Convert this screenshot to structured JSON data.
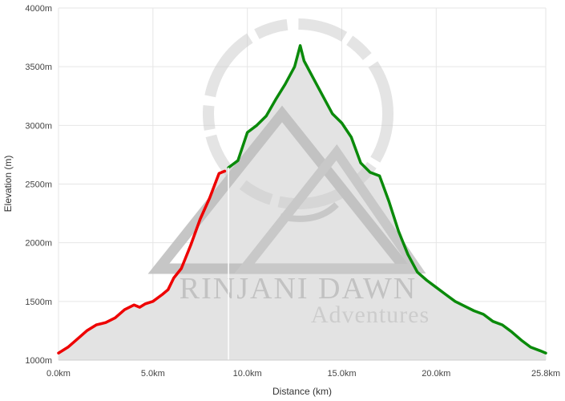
{
  "chart_data": {
    "type": "area",
    "xlabel": "Distance (km)",
    "ylabel": "Elevation (m)",
    "xlim": [
      0,
      25.8
    ],
    "ylim": [
      1000,
      4000
    ],
    "x_ticks": [
      0,
      5,
      10,
      15,
      20,
      25.8
    ],
    "x_tick_labels": [
      "0.0km",
      "5.0km",
      "10.0km",
      "15.0km",
      "20.0km",
      "25.8km"
    ],
    "y_ticks": [
      1000,
      1500,
      2000,
      2500,
      3000,
      3500,
      4000
    ],
    "y_tick_labels": [
      "1000m",
      "1500m",
      "2000m",
      "2500m",
      "3000m",
      "3500m",
      "4000m"
    ],
    "grid": true,
    "area_color": "#e3e3e3",
    "marker_x": 9.0,
    "series": [
      {
        "color": "#ee0000",
        "points": [
          [
            0,
            1060
          ],
          [
            0.5,
            1110
          ],
          [
            1.0,
            1180
          ],
          [
            1.5,
            1250
          ],
          [
            2.0,
            1300
          ],
          [
            2.5,
            1320
          ],
          [
            3.0,
            1360
          ],
          [
            3.5,
            1430
          ],
          [
            4.0,
            1470
          ],
          [
            4.3,
            1450
          ],
          [
            4.6,
            1480
          ],
          [
            5.0,
            1500
          ],
          [
            5.5,
            1560
          ],
          [
            5.8,
            1600
          ],
          [
            6.1,
            1700
          ],
          [
            6.5,
            1780
          ],
          [
            7.0,
            1980
          ],
          [
            7.5,
            2200
          ],
          [
            8.0,
            2380
          ],
          [
            8.4,
            2550
          ],
          [
            8.5,
            2590
          ],
          [
            8.8,
            2610
          ]
        ]
      },
      {
        "color": "#0a8a0a",
        "points": [
          [
            9.0,
            2640
          ],
          [
            9.5,
            2700
          ],
          [
            10.0,
            2940
          ],
          [
            10.5,
            3000
          ],
          [
            11.0,
            3080
          ],
          [
            11.5,
            3220
          ],
          [
            12.0,
            3350
          ],
          [
            12.5,
            3500
          ],
          [
            12.8,
            3680
          ],
          [
            13.0,
            3550
          ],
          [
            13.5,
            3400
          ],
          [
            14.0,
            3250
          ],
          [
            14.5,
            3100
          ],
          [
            15.0,
            3020
          ],
          [
            15.5,
            2900
          ],
          [
            16.0,
            2680
          ],
          [
            16.5,
            2600
          ],
          [
            17.0,
            2570
          ],
          [
            17.5,
            2350
          ],
          [
            18.0,
            2100
          ],
          [
            18.5,
            1900
          ],
          [
            19.0,
            1750
          ],
          [
            19.5,
            1680
          ],
          [
            20.0,
            1620
          ],
          [
            20.5,
            1560
          ],
          [
            21.0,
            1500
          ],
          [
            21.5,
            1460
          ],
          [
            22.0,
            1420
          ],
          [
            22.5,
            1390
          ],
          [
            23.0,
            1330
          ],
          [
            23.5,
            1300
          ],
          [
            24.0,
            1240
          ],
          [
            24.5,
            1170
          ],
          [
            25.0,
            1110
          ],
          [
            25.5,
            1080
          ],
          [
            25.8,
            1060
          ]
        ]
      }
    ]
  },
  "watermark": {
    "line1": "RINJANI DAWN",
    "line2": "Adventures",
    "color": "#bdbdbd"
  }
}
